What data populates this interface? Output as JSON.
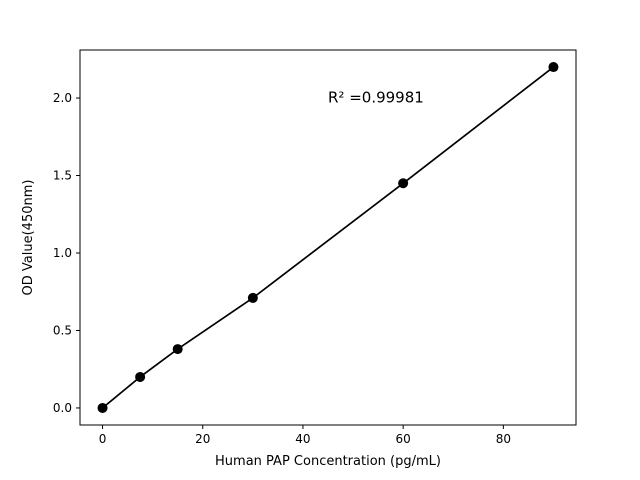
{
  "chart_data": {
    "type": "line",
    "title": "",
    "xlabel": "Human PAP Concentration (pg/mL)",
    "ylabel": "OD Value(450nm)",
    "x": [
      0,
      7.5,
      15,
      30,
      60,
      90
    ],
    "y": [
      0.0,
      0.2,
      0.38,
      0.71,
      1.45,
      2.2
    ],
    "xlim": [
      -4.5,
      94.5
    ],
    "ylim": [
      -0.11,
      2.31
    ],
    "xticks": [
      0,
      20,
      40,
      60,
      80
    ],
    "yticks": [
      0.0,
      0.5,
      1.0,
      1.5,
      2.0
    ],
    "grid": false,
    "legend": null,
    "line_color": "#000000",
    "marker_color": "#000000",
    "background_color": "#ffffff",
    "annotation": {
      "text": "R² =0.99981",
      "x": 45,
      "y": 1.97
    }
  }
}
